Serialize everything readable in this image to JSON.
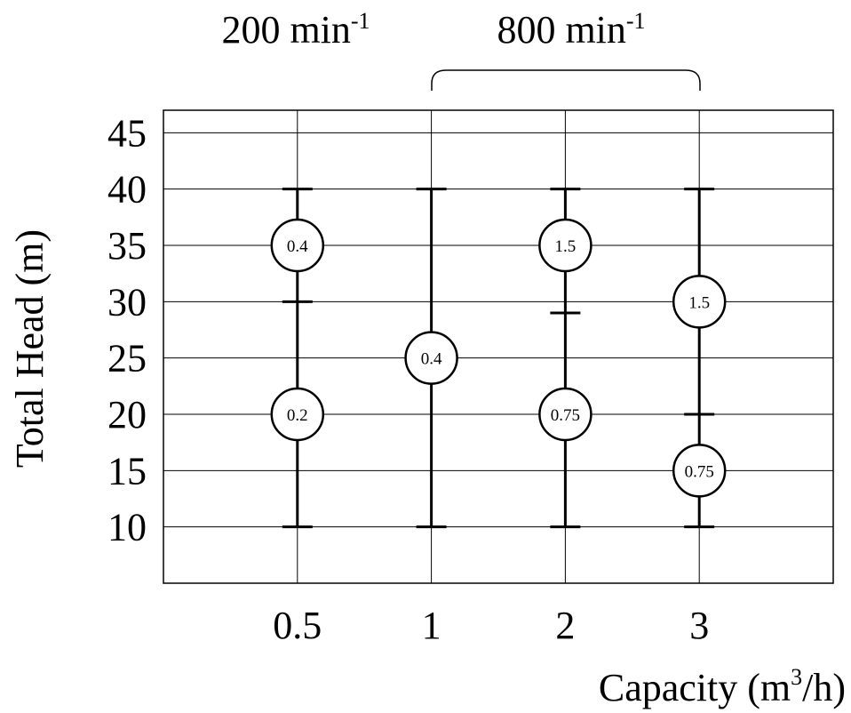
{
  "chart_data": {
    "type": "range",
    "speed_labels": [
      {
        "value": "200 min",
        "superscript": "-1"
      },
      {
        "value": "800 min",
        "superscript": "-1"
      }
    ],
    "ylabel": "Total Head (m)",
    "xlabel": {
      "prefix": "Capacity (m",
      "superscript": "3",
      "suffix": "/h)"
    },
    "yticks": [
      10,
      15,
      20,
      25,
      30,
      35,
      40,
      45
    ],
    "ylim": [
      5,
      47
    ],
    "categories": [
      "0.5",
      "1",
      "2",
      "3"
    ],
    "grid": true,
    "columns": [
      {
        "category": "0.5",
        "speed": "200 min-1",
        "range": [
          10,
          40
        ],
        "dividers": [
          30
        ],
        "bubbles": [
          {
            "y": 35,
            "label": "0.4"
          },
          {
            "y": 20,
            "label": "0.2"
          }
        ]
      },
      {
        "category": "1",
        "speed": "800 min-1",
        "range": [
          10,
          40
        ],
        "dividers": [],
        "bubbles": [
          {
            "y": 25,
            "label": "0.4"
          }
        ]
      },
      {
        "category": "2",
        "speed": "800 min-1",
        "range": [
          10,
          40
        ],
        "dividers": [
          29
        ],
        "bubbles": [
          {
            "y": 35,
            "label": "1.5"
          },
          {
            "y": 20,
            "label": "0.75"
          }
        ]
      },
      {
        "category": "3",
        "speed": "800 min-1",
        "range": [
          10,
          40
        ],
        "dividers": [
          20
        ],
        "bubbles": [
          {
            "y": 30,
            "label": "1.5"
          },
          {
            "y": 15,
            "label": "0.75"
          }
        ]
      }
    ]
  }
}
